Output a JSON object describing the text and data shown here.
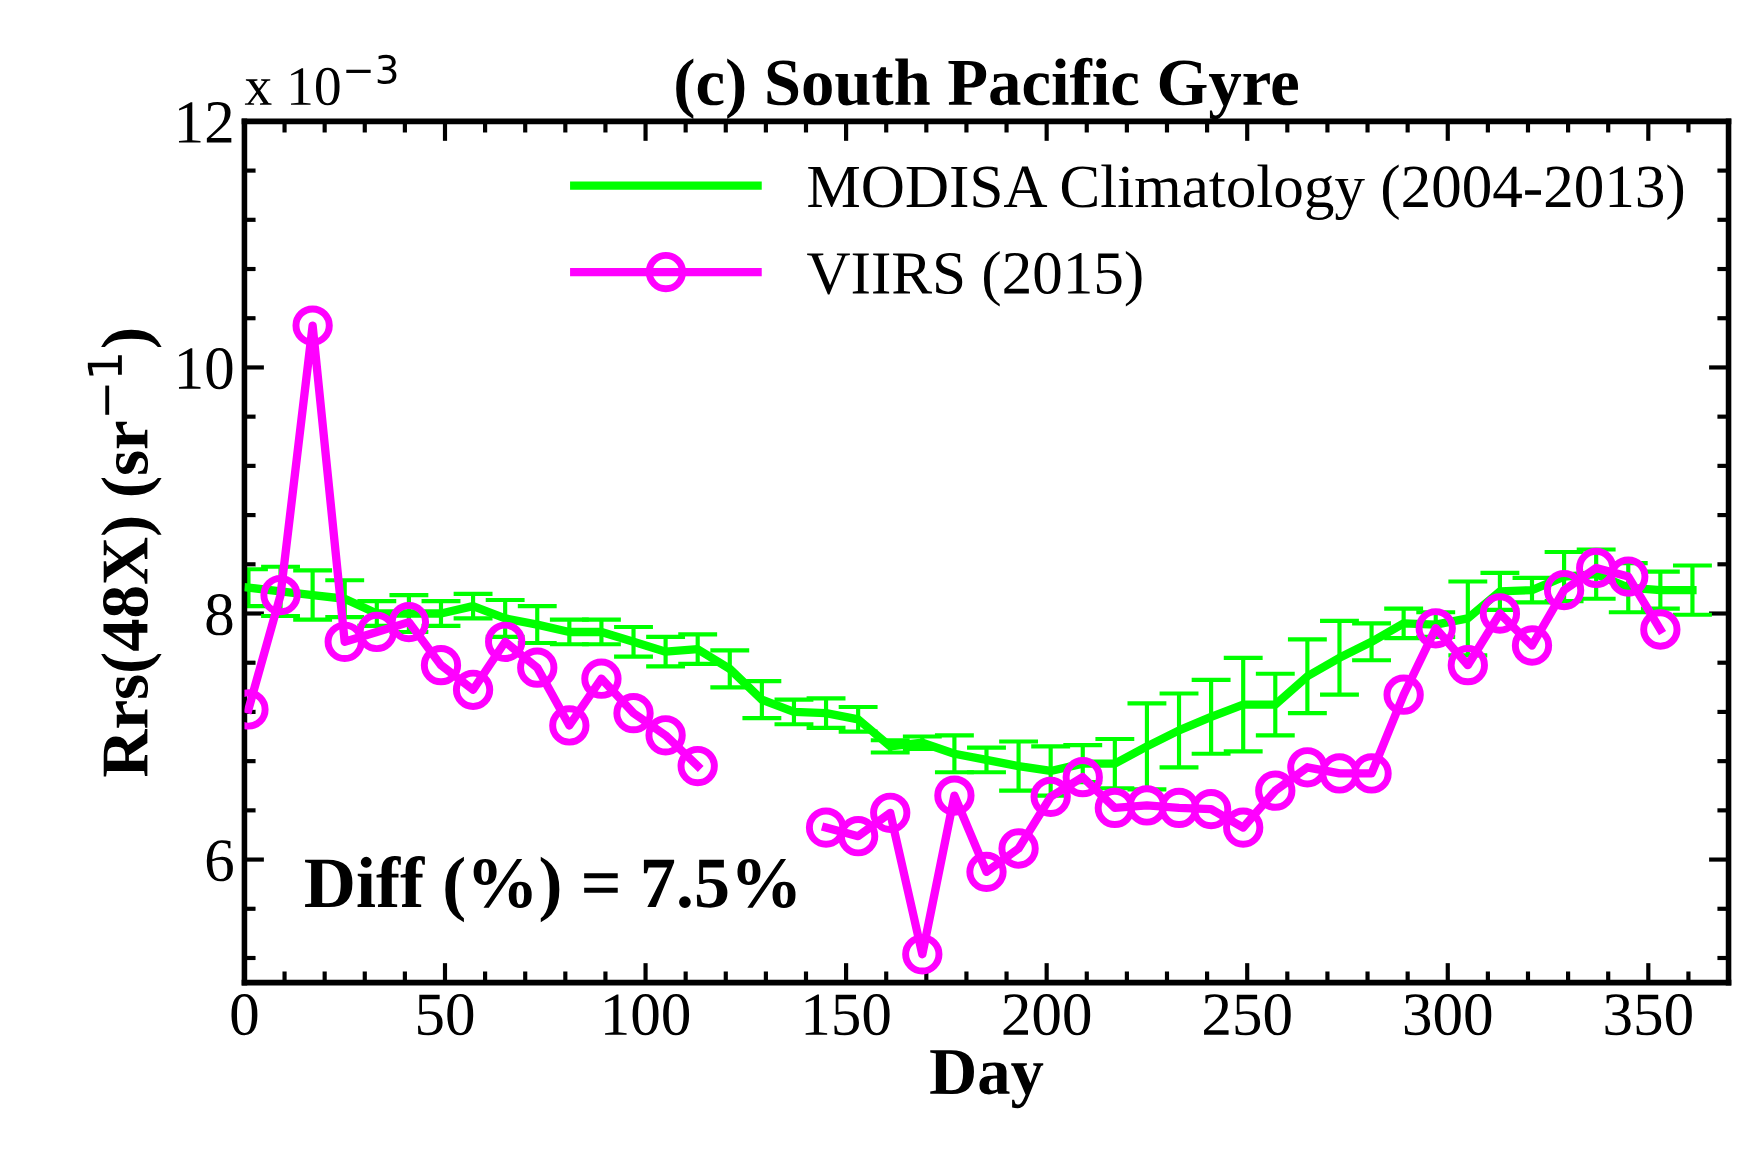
{
  "chart_data": {
    "type": "line",
    "title": "(c) South Pacific Gyre",
    "xlabel": "Day",
    "ylabel": "Rrs(48X) (sr$^{−1}$)",
    "annotations": [
      "x 10$^{−3}$",
      "Diff (%) = 7.5%"
    ],
    "xlim": [
      0,
      370
    ],
    "xticks": [
      0,
      50,
      100,
      150,
      200,
      250,
      300,
      350
    ],
    "ylim": [
      5,
      12
    ],
    "yticks": [
      6,
      8,
      10,
      12
    ],
    "grid": false,
    "legend": "top right",
    "series": [
      {
        "name": "MODISA Climatology (2004-2013)",
        "color": "#00ff00",
        "marker": "none",
        "x": [
          1,
          9,
          17,
          25,
          33,
          41,
          49,
          57,
          65,
          73,
          81,
          89,
          97,
          105,
          113,
          121,
          129,
          137,
          145,
          153,
          161,
          169,
          177,
          185,
          193,
          201,
          209,
          217,
          225,
          233,
          241,
          249,
          257,
          265,
          273,
          281,
          289,
          297,
          305,
          313,
          321,
          329,
          337,
          345,
          353,
          361
        ],
        "values": [
          8.21,
          8.18,
          8.15,
          8.12,
          8.0,
          8.0,
          8.0,
          8.06,
          7.96,
          7.91,
          7.85,
          7.85,
          7.77,
          7.69,
          7.71,
          7.55,
          7.3,
          7.2,
          7.19,
          7.14,
          6.92,
          6.95,
          6.86,
          6.81,
          6.76,
          6.72,
          6.78,
          6.78,
          6.92,
          7.05,
          7.16,
          7.26,
          7.26,
          7.49,
          7.64,
          7.77,
          7.92,
          7.91,
          7.96,
          8.18,
          8.19,
          8.3,
          8.32,
          8.21,
          8.19,
          8.19
        ],
        "errors": [
          0.15,
          0.2,
          0.2,
          0.15,
          0.1,
          0.15,
          0.1,
          0.1,
          0.15,
          0.15,
          0.1,
          0.1,
          0.12,
          0.12,
          0.12,
          0.15,
          0.15,
          0.1,
          0.12,
          0.1,
          0.05,
          0.05,
          0.15,
          0.1,
          0.2,
          0.2,
          0.15,
          0.2,
          0.35,
          0.3,
          0.3,
          0.38,
          0.25,
          0.3,
          0.3,
          0.15,
          0.12,
          0.1,
          0.3,
          0.15,
          0.1,
          0.2,
          0.2,
          0.2,
          0.15,
          0.2
        ]
      },
      {
        "name": "VIIRS (2015)",
        "color": "#ff00ff",
        "marker": "circle",
        "x": [
          1,
          9,
          17,
          25,
          33,
          41,
          49,
          57,
          65,
          73,
          81,
          89,
          97,
          105,
          113,
          121,
          129,
          137,
          145,
          153,
          161,
          169,
          177,
          185,
          193,
          201,
          209,
          217,
          225,
          233,
          241,
          249,
          257,
          265,
          273,
          281,
          289,
          297,
          305,
          313,
          321,
          329,
          337,
          345,
          353
        ],
        "values": [
          7.22,
          8.15,
          10.34,
          7.77,
          7.85,
          7.93,
          7.58,
          7.38,
          7.77,
          7.56,
          7.09,
          7.47,
          7.19,
          7.01,
          6.76,
          null,
          null,
          null,
          6.26,
          6.19,
          6.38,
          5.23,
          6.52,
          5.9,
          6.09,
          6.51,
          6.67,
          6.42,
          6.44,
          6.42,
          6.41,
          6.26,
          6.56,
          6.75,
          6.7,
          6.7,
          7.34,
          7.88,
          7.58,
          8.0,
          7.74,
          8.19,
          8.37,
          8.3,
          7.87
        ]
      }
    ]
  }
}
